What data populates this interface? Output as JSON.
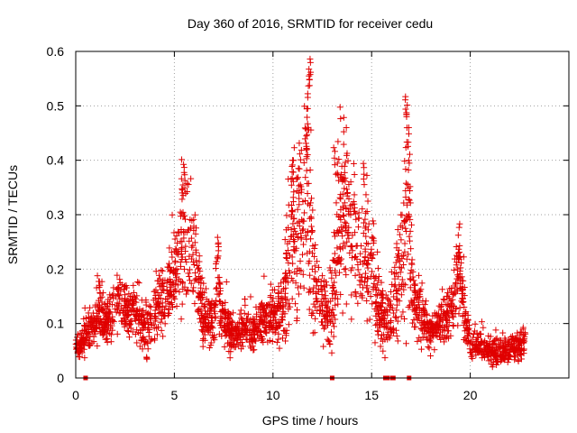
{
  "chart_data": {
    "type": "scatter",
    "title": "Day 360 of 2016, SRMTID for receiver cedu",
    "xlabel": "GPS time / hours",
    "ylabel": "SRMTID / TECUs",
    "xlim": [
      0,
      25
    ],
    "ylim": [
      0,
      0.6
    ],
    "x_ticks": [
      0,
      5,
      10,
      15,
      20
    ],
    "x_tick_labels": [
      "0",
      "5",
      "10",
      "15",
      "20"
    ],
    "y_ticks": [
      0,
      0.1,
      0.2,
      0.3,
      0.4,
      0.5,
      0.6
    ],
    "y_tick_labels": [
      "0",
      "0.1",
      "0.2",
      "0.3",
      "0.4",
      "0.5",
      "0.6"
    ],
    "grid": true,
    "marker": "+",
    "series": [
      {
        "name": "SRMTID",
        "color": "#e00000",
        "profile_x": [
          0.0,
          0.3,
          0.6,
          1.0,
          1.3,
          1.6,
          2.0,
          2.3,
          2.6,
          3.0,
          3.3,
          3.6,
          4.0,
          4.4,
          4.8,
          5.1,
          5.4,
          5.6,
          5.8,
          6.1,
          6.4,
          6.7,
          7.0,
          7.2,
          7.4,
          7.7,
          8.0,
          8.3,
          8.6,
          9.0,
          9.3,
          9.6,
          10.0,
          10.3,
          10.6,
          10.9,
          11.1,
          11.3,
          11.6,
          11.8,
          12.0,
          12.2,
          12.5,
          12.8,
          13.0,
          13.2,
          13.4,
          13.6,
          13.8,
          14.0,
          14.3,
          14.6,
          14.9,
          15.2,
          15.5,
          15.8,
          16.1,
          16.3,
          16.5,
          16.7,
          16.9,
          17.1,
          17.4,
          17.7,
          18.0,
          18.3,
          18.6,
          19.0,
          19.3,
          19.5,
          19.7,
          20.0,
          20.3,
          20.6,
          21.0,
          21.4,
          21.8,
          22.2,
          22.6,
          22.8
        ],
        "profile_y": [
          0.055,
          0.065,
          0.085,
          0.11,
          0.12,
          0.1,
          0.13,
          0.14,
          0.12,
          0.13,
          0.1,
          0.09,
          0.12,
          0.15,
          0.17,
          0.2,
          0.24,
          0.3,
          0.22,
          0.2,
          0.13,
          0.1,
          0.11,
          0.18,
          0.11,
          0.09,
          0.07,
          0.09,
          0.1,
          0.085,
          0.1,
          0.11,
          0.12,
          0.11,
          0.16,
          0.25,
          0.28,
          0.22,
          0.3,
          0.35,
          0.22,
          0.16,
          0.13,
          0.1,
          0.14,
          0.22,
          0.3,
          0.28,
          0.32,
          0.27,
          0.2,
          0.24,
          0.23,
          0.15,
          0.12,
          0.1,
          0.13,
          0.2,
          0.18,
          0.27,
          0.25,
          0.14,
          0.12,
          0.1,
          0.08,
          0.09,
          0.11,
          0.12,
          0.18,
          0.2,
          0.11,
          0.07,
          0.06,
          0.06,
          0.05,
          0.045,
          0.05,
          0.055,
          0.06,
          0.075
        ],
        "spread": [
          0.012,
          0.015,
          0.02,
          0.03,
          0.03,
          0.025,
          0.035,
          0.035,
          0.03,
          0.035,
          0.035,
          0.03,
          0.035,
          0.04,
          0.04,
          0.05,
          0.07,
          0.08,
          0.05,
          0.05,
          0.035,
          0.025,
          0.03,
          0.06,
          0.025,
          0.02,
          0.02,
          0.02,
          0.025,
          0.02,
          0.025,
          0.025,
          0.03,
          0.03,
          0.06,
          0.09,
          0.1,
          0.08,
          0.12,
          0.14,
          0.09,
          0.05,
          0.04,
          0.03,
          0.05,
          0.09,
          0.1,
          0.1,
          0.08,
          0.08,
          0.07,
          0.08,
          0.08,
          0.05,
          0.035,
          0.03,
          0.05,
          0.08,
          0.07,
          0.12,
          0.1,
          0.04,
          0.035,
          0.03,
          0.02,
          0.025,
          0.035,
          0.03,
          0.05,
          0.05,
          0.03,
          0.02,
          0.015,
          0.015,
          0.015,
          0.015,
          0.015,
          0.015,
          0.015,
          0.015
        ],
        "peaks": [
          [
            5.5,
            0.395
          ],
          [
            5.4,
            0.37
          ],
          [
            7.2,
            0.265
          ],
          [
            11.0,
            0.405
          ],
          [
            11.9,
            0.595
          ],
          [
            11.85,
            0.575
          ],
          [
            11.8,
            0.54
          ],
          [
            11.75,
            0.5
          ],
          [
            11.7,
            0.46
          ],
          [
            11.3,
            0.36
          ],
          [
            13.1,
            0.43
          ],
          [
            13.3,
            0.41
          ],
          [
            13.6,
            0.39
          ],
          [
            14.1,
            0.345
          ],
          [
            14.6,
            0.395
          ],
          [
            16.75,
            0.525
          ],
          [
            16.8,
            0.505
          ],
          [
            16.85,
            0.465
          ],
          [
            16.9,
            0.42
          ],
          [
            16.95,
            0.36
          ],
          [
            19.3,
            0.245
          ],
          [
            19.4,
            0.23
          ]
        ],
        "zero_points_x": [
          0.5,
          13.0,
          15.7,
          15.8,
          16.05,
          16.1,
          16.9
        ]
      }
    ]
  }
}
